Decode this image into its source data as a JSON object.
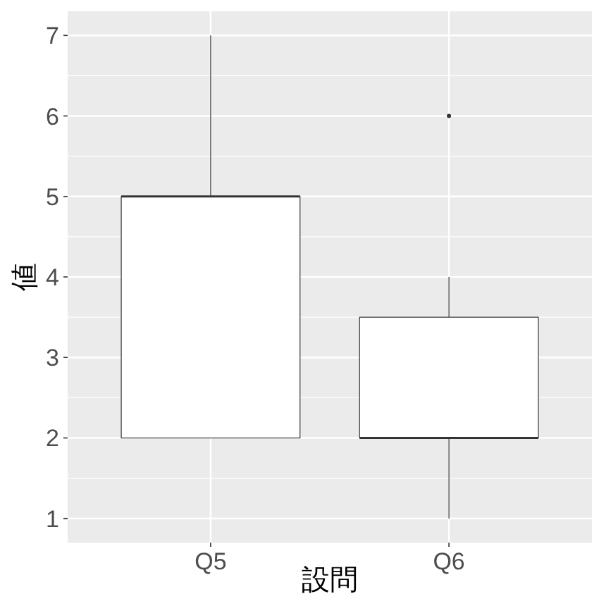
{
  "chart_data": {
    "type": "box",
    "xlabel": "設問",
    "ylabel": "値",
    "categories": [
      "Q5",
      "Q6"
    ],
    "boxes": [
      {
        "low": 2,
        "q1": 2,
        "median": 5,
        "q3": 5,
        "high": 7
      },
      {
        "low": 1,
        "q1": 2,
        "median": 2,
        "q3": 3.5,
        "high": 4,
        "outliers": [
          6
        ]
      }
    ],
    "ylim": [
      0.7,
      7.3
    ],
    "yticks": [
      1,
      2,
      3,
      4,
      5,
      6,
      7
    ],
    "grid": true
  }
}
